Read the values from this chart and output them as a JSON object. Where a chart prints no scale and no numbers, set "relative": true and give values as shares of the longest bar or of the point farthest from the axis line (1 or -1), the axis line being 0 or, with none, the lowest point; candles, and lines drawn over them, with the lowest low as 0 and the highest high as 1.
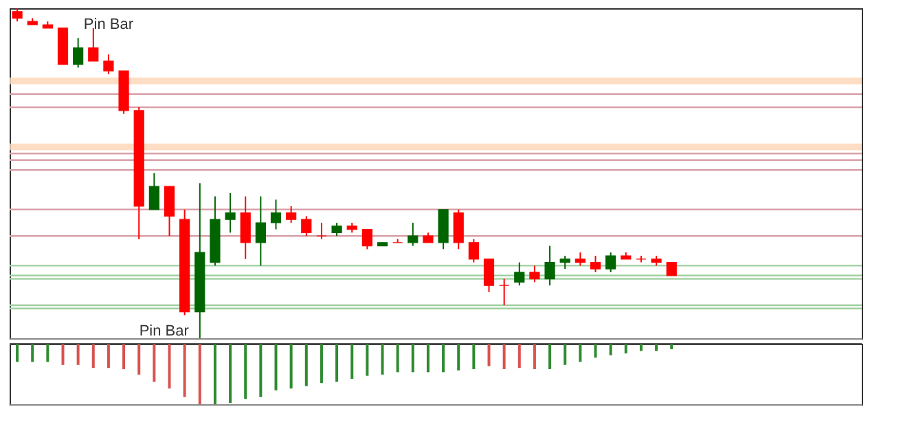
{
  "chart_data": [
    {
      "type": "candlestick",
      "relative": true,
      "tick_labels": false,
      "grid": false,
      "categories": [
        null,
        null,
        null,
        null,
        null,
        null,
        null,
        null,
        null,
        null,
        null,
        null,
        null,
        null,
        null,
        null,
        null,
        null,
        null,
        null,
        null,
        null,
        null,
        null,
        null,
        null,
        null,
        null,
        null,
        null,
        null,
        null,
        null,
        null,
        null,
        null,
        null,
        null,
        null,
        null,
        null,
        null,
        null,
        null
      ],
      "ohlc": [
        [
          0.99,
          1.0,
          0.96,
          0.97
        ],
        [
          0.96,
          0.97,
          0.95,
          0.95
        ],
        [
          0.95,
          0.96,
          0.94,
          0.94
        ],
        [
          0.94,
          0.94,
          0.83,
          0.83
        ],
        [
          0.83,
          0.91,
          0.82,
          0.88
        ],
        [
          0.88,
          0.94,
          0.84,
          0.84
        ],
        [
          0.84,
          0.86,
          0.8,
          0.81
        ],
        [
          0.81,
          0.81,
          0.68,
          0.69
        ],
        [
          0.69,
          0.7,
          0.3,
          0.4
        ],
        [
          0.39,
          0.5,
          0.39,
          0.46
        ],
        [
          0.46,
          0.46,
          0.31,
          0.37
        ],
        [
          0.36,
          0.39,
          0.07,
          0.08
        ],
        [
          0.08,
          0.47,
          0,
          0.26
        ],
        [
          0.23,
          0.43,
          0.22,
          0.36
        ],
        [
          0.36,
          0.44,
          0.32,
          0.38
        ],
        [
          0.38,
          0.43,
          0.24,
          0.29
        ],
        [
          0.29,
          0.43,
          0.22,
          0.35
        ],
        [
          0.35,
          0.42,
          0.33,
          0.38
        ],
        [
          0.38,
          0.4,
          0.35,
          0.36
        ],
        [
          0.36,
          0.37,
          0.31,
          0.32
        ],
        [
          0.31,
          0.35,
          0.3,
          0.31
        ],
        [
          0.32,
          0.35,
          0.31,
          0.34
        ],
        [
          0.34,
          0.35,
          0.32,
          0.33
        ],
        [
          0.33,
          0.33,
          0.27,
          0.28
        ],
        [
          0.28,
          0.29,
          0.28,
          0.29
        ],
        [
          0.29,
          0.3,
          0.29,
          0.29
        ],
        [
          0.29,
          0.35,
          0.28,
          0.31
        ],
        [
          0.31,
          0.32,
          0.29,
          0.29
        ],
        [
          0.29,
          0.39,
          0.27,
          0.39
        ],
        [
          0.38,
          0.39,
          0.27,
          0.29
        ],
        [
          0.29,
          0.3,
          0.23,
          0.24
        ],
        [
          0.24,
          0.24,
          0.14,
          0.16
        ],
        [
          0.16,
          0.18,
          0.1,
          0.16
        ],
        [
          0.17,
          0.23,
          0.16,
          0.2
        ],
        [
          0.2,
          0.22,
          0.17,
          0.18
        ],
        [
          0.18,
          0.28,
          0.16,
          0.23
        ],
        [
          0.23,
          0.25,
          0.21,
          0.24
        ],
        [
          0.24,
          0.26,
          0.22,
          0.23
        ],
        [
          0.23,
          0.25,
          0.2,
          0.21
        ],
        [
          0.21,
          0.26,
          0.2,
          0.25
        ],
        [
          0.25,
          0.26,
          0.24,
          0.24
        ],
        [
          0.24,
          0.25,
          0.23,
          0.24
        ],
        [
          0.24,
          0.25,
          0.22,
          0.23
        ],
        [
          0.23,
          0.23,
          0.19,
          0.19
        ]
      ],
      "colors": [
        "#ff0000",
        "#ff0000",
        "#ff0000",
        "#ff0000",
        "#006400",
        "#ff0000",
        "#ff0000",
        "#ff0000",
        "#ff0000",
        "#006400",
        "#ff0000",
        "#ff0000",
        "#006400",
        "#006400",
        "#006400",
        "#ff0000",
        "#006400",
        "#006400",
        "#ff0000",
        "#ff0000",
        "#ff0000",
        "#006400",
        "#ff0000",
        "#ff0000",
        "#006400",
        "#ff0000",
        "#006400",
        "#ff0000",
        "#006400",
        "#ff0000",
        "#ff0000",
        "#ff0000",
        "#ff0000",
        "#006400",
        "#ff0000",
        "#006400",
        "#006400",
        "#ff0000",
        "#ff0000",
        "#006400",
        "#ff0000",
        "#ff0000",
        "#ff0000",
        "#ff0000"
      ],
      "bands": [
        {
          "axis": "y",
          "from": 0.77,
          "to": 0.79,
          "color": "#fcd5b4"
        },
        {
          "axis": "y",
          "from": 0.57,
          "to": 0.59,
          "color": "#fcd5b4"
        }
      ],
      "ref_lines": [
        {
          "axis": "y",
          "value": 0.74,
          "color": "#d9a0a8"
        },
        {
          "axis": "y",
          "value": 0.7,
          "color": "#d9a0a8"
        },
        {
          "axis": "y",
          "value": 0.56,
          "color": "#d9a0a8"
        },
        {
          "axis": "y",
          "value": 0.54,
          "color": "#d9a0a8"
        },
        {
          "axis": "y",
          "value": 0.51,
          "color": "#d9a0a8"
        },
        {
          "axis": "y",
          "value": 0.39,
          "color": "#d9a0a8"
        },
        {
          "axis": "y",
          "value": 0.31,
          "color": "#d9a0a8"
        },
        {
          "axis": "y",
          "value": 0.22,
          "color": "#9fcf9f"
        },
        {
          "axis": "y",
          "value": 0.19,
          "color": "#9fcf9f"
        },
        {
          "axis": "y",
          "value": 0.18,
          "color": "#9fcf9f"
        },
        {
          "axis": "y",
          "value": 0.1,
          "color": "#9fcf9f"
        },
        {
          "axis": "y",
          "value": 0.09,
          "color": "#9fcf9f"
        }
      ],
      "annotations": [
        "Pin Bar",
        "Pin Bar"
      ]
    },
    {
      "type": "bar",
      "relative": true,
      "tick_labels": false,
      "grid": false,
      "categories": [
        null,
        null,
        null,
        null,
        null,
        null,
        null,
        null,
        null,
        null,
        null,
        null,
        null,
        null,
        null,
        null,
        null,
        null,
        null,
        null,
        null,
        null,
        null,
        null,
        null,
        null,
        null,
        null,
        null,
        null,
        null,
        null,
        null,
        null,
        null,
        null,
        null,
        null,
        null,
        null,
        null,
        null,
        null,
        null
      ],
      "values": [
        -0.3,
        -0.3,
        -0.3,
        -0.35,
        -0.35,
        -0.4,
        -0.4,
        -0.42,
        -0.51,
        -0.63,
        -0.74,
        -0.88,
        -1,
        -1,
        -0.98,
        -0.91,
        -0.88,
        -0.77,
        -0.74,
        -0.7,
        -0.65,
        -0.63,
        -0.58,
        -0.53,
        -0.51,
        -0.47,
        -0.47,
        -0.47,
        -0.47,
        -0.44,
        -0.42,
        -0.37,
        -0.42,
        -0.4,
        -0.42,
        -0.42,
        -0.35,
        -0.3,
        -0.23,
        -0.19,
        -0.16,
        -0.12,
        -0.12,
        -0.09
      ],
      "colors": [
        "#2e8b2e",
        "#2e8b2e",
        "#2e8b2e",
        "#d9534f",
        "#d9534f",
        "#d9534f",
        "#d9534f",
        "#d9534f",
        "#d9534f",
        "#d9534f",
        "#d9534f",
        "#d9534f",
        "#d9534f",
        "#2e8b2e",
        "#2e8b2e",
        "#2e8b2e",
        "#2e8b2e",
        "#2e8b2e",
        "#2e8b2e",
        "#2e8b2e",
        "#2e8b2e",
        "#2e8b2e",
        "#2e8b2e",
        "#2e8b2e",
        "#2e8b2e",
        "#2e8b2e",
        "#2e8b2e",
        "#2e8b2e",
        "#2e8b2e",
        "#2e8b2e",
        "#2e8b2e",
        "#d9534f",
        "#d9534f",
        "#d9534f",
        "#d9534f",
        "#2e8b2e",
        "#2e8b2e",
        "#2e8b2e",
        "#2e8b2e",
        "#2e8b2e",
        "#2e8b2e",
        "#2e8b2e",
        "#2e8b2e",
        "#2e8b2e"
      ]
    }
  ]
}
